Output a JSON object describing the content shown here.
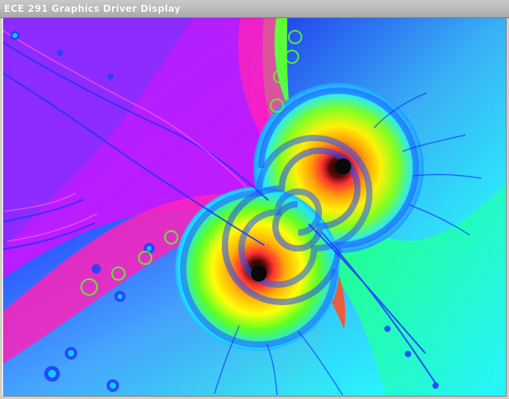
{
  "window": {
    "title": "ECE 291 Graphics Driver Display"
  },
  "display": {
    "content": "julia-fractal-render"
  },
  "colors": {
    "purple": "#7a2cff",
    "magenta": "#ff00ff",
    "pink": "#ff2aa8",
    "red": "#ff2b2b",
    "orange": "#ff8a00",
    "yellow": "#ffee00",
    "green": "#3cff3c",
    "cyan": "#22f1ff",
    "blue": "#2457ff",
    "black": "#000000"
  }
}
